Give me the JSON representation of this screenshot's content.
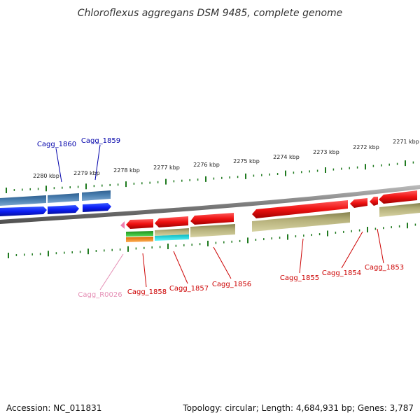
{
  "title": "Chloroflexus aggregans DSM 9485, complete genome",
  "footer": {
    "accession": "Accession: NC_011831",
    "summary": "Topology: circular; Length: 4,684,931 bp; Genes: 3,787"
  },
  "colors": {
    "backbone": "#8a8a8a",
    "tick": "#1f7a1f",
    "plus_label": "#0000aa",
    "minus_label": "#cc0000",
    "rna_label": "#e58fb5",
    "cds_plus": "#0b1cf5",
    "cds_minus": "#ee1111",
    "cog_steel": "#4a7fb0",
    "cog_olive": "#b5b07a",
    "cog_green": "#3dbb3d",
    "cog_cyan": "#16e4ec",
    "cog_orange": "#ff8c1a",
    "rna": "#f07fb0"
  },
  "scale": {
    "unit": "kbp",
    "labels": [
      "2280 kbp",
      "2279 kbp",
      "2278 kbp",
      "2277 kbp",
      "2276 kbp",
      "2275 kbp",
      "2274 kbp",
      "2273 kbp",
      "2272 kbp",
      "2271 kbp"
    ]
  },
  "genes": [
    {
      "id": "Cagg_1860",
      "strand": "+",
      "color": "plus_label"
    },
    {
      "id": "Cagg_1859",
      "strand": "+",
      "color": "plus_label"
    },
    {
      "id": "Cagg_R0026",
      "strand": "-",
      "color": "rna_label"
    },
    {
      "id": "Cagg_1858",
      "strand": "-",
      "color": "minus_label"
    },
    {
      "id": "Cagg_1857",
      "strand": "-",
      "color": "minus_label"
    },
    {
      "id": "Cagg_1856",
      "strand": "-",
      "color": "minus_label"
    },
    {
      "id": "Cagg_1855",
      "strand": "-",
      "color": "minus_label"
    },
    {
      "id": "Cagg_1854",
      "strand": "-",
      "color": "minus_label"
    },
    {
      "id": "Cagg_1853",
      "strand": "-",
      "color": "minus_label"
    }
  ]
}
